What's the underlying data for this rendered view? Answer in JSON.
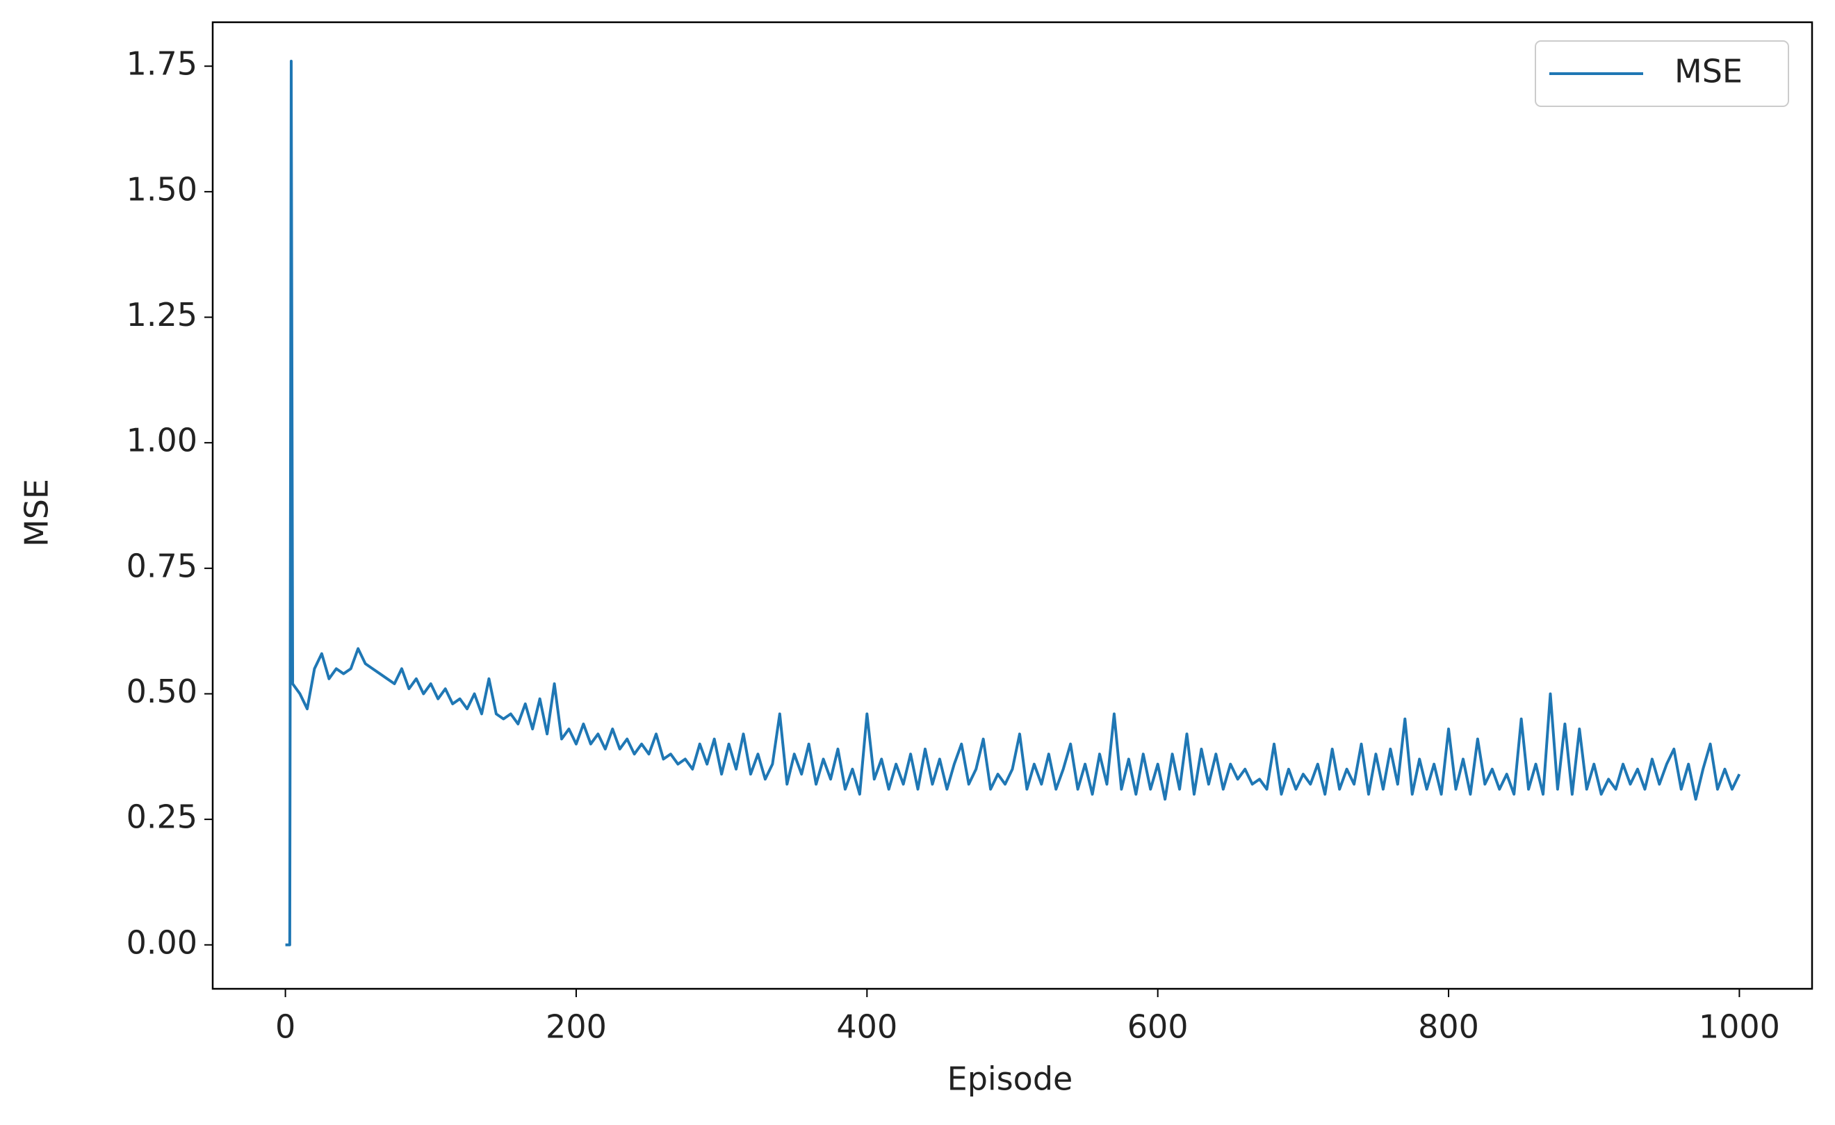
{
  "chart_data": {
    "type": "line",
    "xlabel": "Episode",
    "ylabel": "MSE",
    "x": [
      0,
      1,
      2,
      3,
      4,
      5,
      10,
      15,
      20,
      25,
      30,
      35,
      40,
      45,
      50,
      55,
      60,
      65,
      70,
      75,
      80,
      85,
      90,
      95,
      100,
      105,
      110,
      115,
      120,
      125,
      130,
      135,
      140,
      145,
      150,
      155,
      160,
      165,
      170,
      175,
      180,
      185,
      190,
      195,
      200,
      205,
      210,
      215,
      220,
      225,
      230,
      235,
      240,
      245,
      250,
      255,
      260,
      265,
      270,
      275,
      280,
      285,
      290,
      295,
      300,
      305,
      310,
      315,
      320,
      325,
      330,
      335,
      340,
      345,
      350,
      355,
      360,
      365,
      370,
      375,
      380,
      385,
      390,
      395,
      400,
      405,
      410,
      415,
      420,
      425,
      430,
      435,
      440,
      445,
      450,
      455,
      460,
      465,
      470,
      475,
      480,
      485,
      490,
      495,
      500,
      505,
      510,
      515,
      520,
      525,
      530,
      535,
      540,
      545,
      550,
      555,
      560,
      565,
      570,
      575,
      580,
      585,
      590,
      595,
      600,
      605,
      610,
      615,
      620,
      625,
      630,
      635,
      640,
      645,
      650,
      655,
      660,
      665,
      670,
      675,
      680,
      685,
      690,
      695,
      700,
      705,
      710,
      715,
      720,
      725,
      730,
      735,
      740,
      745,
      750,
      755,
      760,
      765,
      770,
      775,
      780,
      785,
      790,
      795,
      800,
      805,
      810,
      815,
      820,
      825,
      830,
      835,
      840,
      845,
      850,
      855,
      860,
      865,
      870,
      875,
      880,
      885,
      890,
      895,
      900,
      905,
      910,
      915,
      920,
      925,
      930,
      935,
      940,
      945,
      950,
      955,
      960,
      965,
      970,
      975,
      980,
      985,
      990,
      995,
      1000
    ],
    "series": [
      {
        "name": "MSE",
        "color": "#1f77b4",
        "values": [
          0,
          0,
          0,
          0,
          1.76,
          0.52,
          0.5,
          0.47,
          0.55,
          0.58,
          0.53,
          0.55,
          0.54,
          0.55,
          0.59,
          0.56,
          0.55,
          0.54,
          0.53,
          0.52,
          0.55,
          0.51,
          0.53,
          0.5,
          0.52,
          0.49,
          0.51,
          0.48,
          0.49,
          0.47,
          0.5,
          0.46,
          0.53,
          0.46,
          0.45,
          0.46,
          0.44,
          0.48,
          0.43,
          0.49,
          0.42,
          0.52,
          0.41,
          0.43,
          0.4,
          0.44,
          0.4,
          0.42,
          0.39,
          0.43,
          0.39,
          0.41,
          0.38,
          0.4,
          0.38,
          0.42,
          0.37,
          0.38,
          0.36,
          0.37,
          0.35,
          0.4,
          0.36,
          0.41,
          0.34,
          0.4,
          0.35,
          0.42,
          0.34,
          0.38,
          0.33,
          0.36,
          0.46,
          0.32,
          0.38,
          0.34,
          0.4,
          0.32,
          0.37,
          0.33,
          0.39,
          0.31,
          0.35,
          0.3,
          0.46,
          0.33,
          0.37,
          0.31,
          0.36,
          0.32,
          0.38,
          0.31,
          0.39,
          0.32,
          0.37,
          0.31,
          0.36,
          0.4,
          0.32,
          0.35,
          0.41,
          0.31,
          0.34,
          0.32,
          0.35,
          0.42,
          0.31,
          0.36,
          0.32,
          0.38,
          0.31,
          0.35,
          0.4,
          0.31,
          0.36,
          0.3,
          0.38,
          0.32,
          0.46,
          0.31,
          0.37,
          0.3,
          0.38,
          0.31,
          0.36,
          0.29,
          0.38,
          0.31,
          0.42,
          0.3,
          0.39,
          0.32,
          0.38,
          0.31,
          0.36,
          0.33,
          0.35,
          0.32,
          0.33,
          0.31,
          0.4,
          0.3,
          0.35,
          0.31,
          0.34,
          0.32,
          0.36,
          0.3,
          0.39,
          0.31,
          0.35,
          0.32,
          0.4,
          0.3,
          0.38,
          0.31,
          0.39,
          0.32,
          0.45,
          0.3,
          0.37,
          0.31,
          0.36,
          0.3,
          0.43,
          0.31,
          0.37,
          0.3,
          0.41,
          0.32,
          0.35,
          0.31,
          0.34,
          0.3,
          0.45,
          0.31,
          0.36,
          0.3,
          0.5,
          0.31,
          0.44,
          0.3,
          0.43,
          0.31,
          0.36,
          0.3,
          0.33,
          0.31,
          0.36,
          0.32,
          0.35,
          0.31,
          0.37,
          0.32,
          0.36,
          0.39,
          0.31,
          0.36,
          0.29,
          0.35,
          0.4,
          0.31,
          0.35,
          0.31,
          0.34
        ]
      }
    ],
    "xlim": [
      -50,
      1050
    ],
    "ylim": [
      -0.0875,
      1.8375
    ],
    "xticks": [
      0,
      200,
      400,
      600,
      800,
      1000
    ],
    "yticks": [
      {
        "value": 0,
        "label": "0.00"
      },
      {
        "value": 0.25,
        "label": "0.25"
      },
      {
        "value": 0.5,
        "label": "0.50"
      },
      {
        "value": 0.75,
        "label": "0.75"
      },
      {
        "value": 1,
        "label": "1.00"
      },
      {
        "value": 1.25,
        "label": "1.25"
      },
      {
        "value": 1.5,
        "label": "1.50"
      },
      {
        "value": 1.75,
        "label": "1.75"
      }
    ],
    "legend": "upper right"
  }
}
